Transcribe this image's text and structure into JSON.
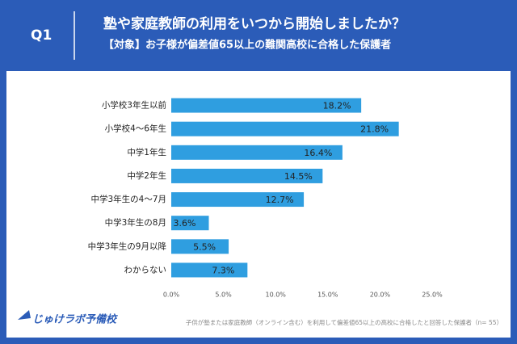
{
  "header": {
    "label": "Q1",
    "title": "塾や家庭教師の利用をいつから開始しましたか？",
    "subtitle": "【対象】お子様が偏差値65以上の難関高校に合格した保護者"
  },
  "chart_data": {
    "type": "barh",
    "categories": [
      "小学校3年生以前",
      "小学校4〜6年生",
      "中学1年生",
      "中学2年生",
      "中学3年生の4〜7月",
      "中学3年生の8月",
      "中学3年生の9月以降",
      "わからない"
    ],
    "values": [
      18.2,
      21.8,
      16.4,
      14.5,
      12.7,
      3.6,
      5.5,
      7.3
    ],
    "value_labels": [
      "18.2%",
      "21.8%",
      "16.4%",
      "14.5%",
      "12.7%",
      "3.6%",
      "5.5%",
      "7.3%"
    ],
    "color": "#2f9ee0",
    "xlim": [
      0,
      25
    ],
    "xticks": [
      {
        "value": 0,
        "label": "0.0%"
      },
      {
        "value": 5,
        "label": "5.0%"
      },
      {
        "value": 10,
        "label": "10.0%"
      },
      {
        "value": 15,
        "label": "15.0%"
      },
      {
        "value": 20,
        "label": "20.0%"
      },
      {
        "value": 25,
        "label": "25.0%"
      }
    ],
    "grid": false
  },
  "footer": {
    "logo": "じゅけラボ予備校",
    "note": "子供が塾または家庭教師（オンライン含む）を利用して偏差値65以上の高校に合格したと回答した保護者（n= 55）"
  }
}
